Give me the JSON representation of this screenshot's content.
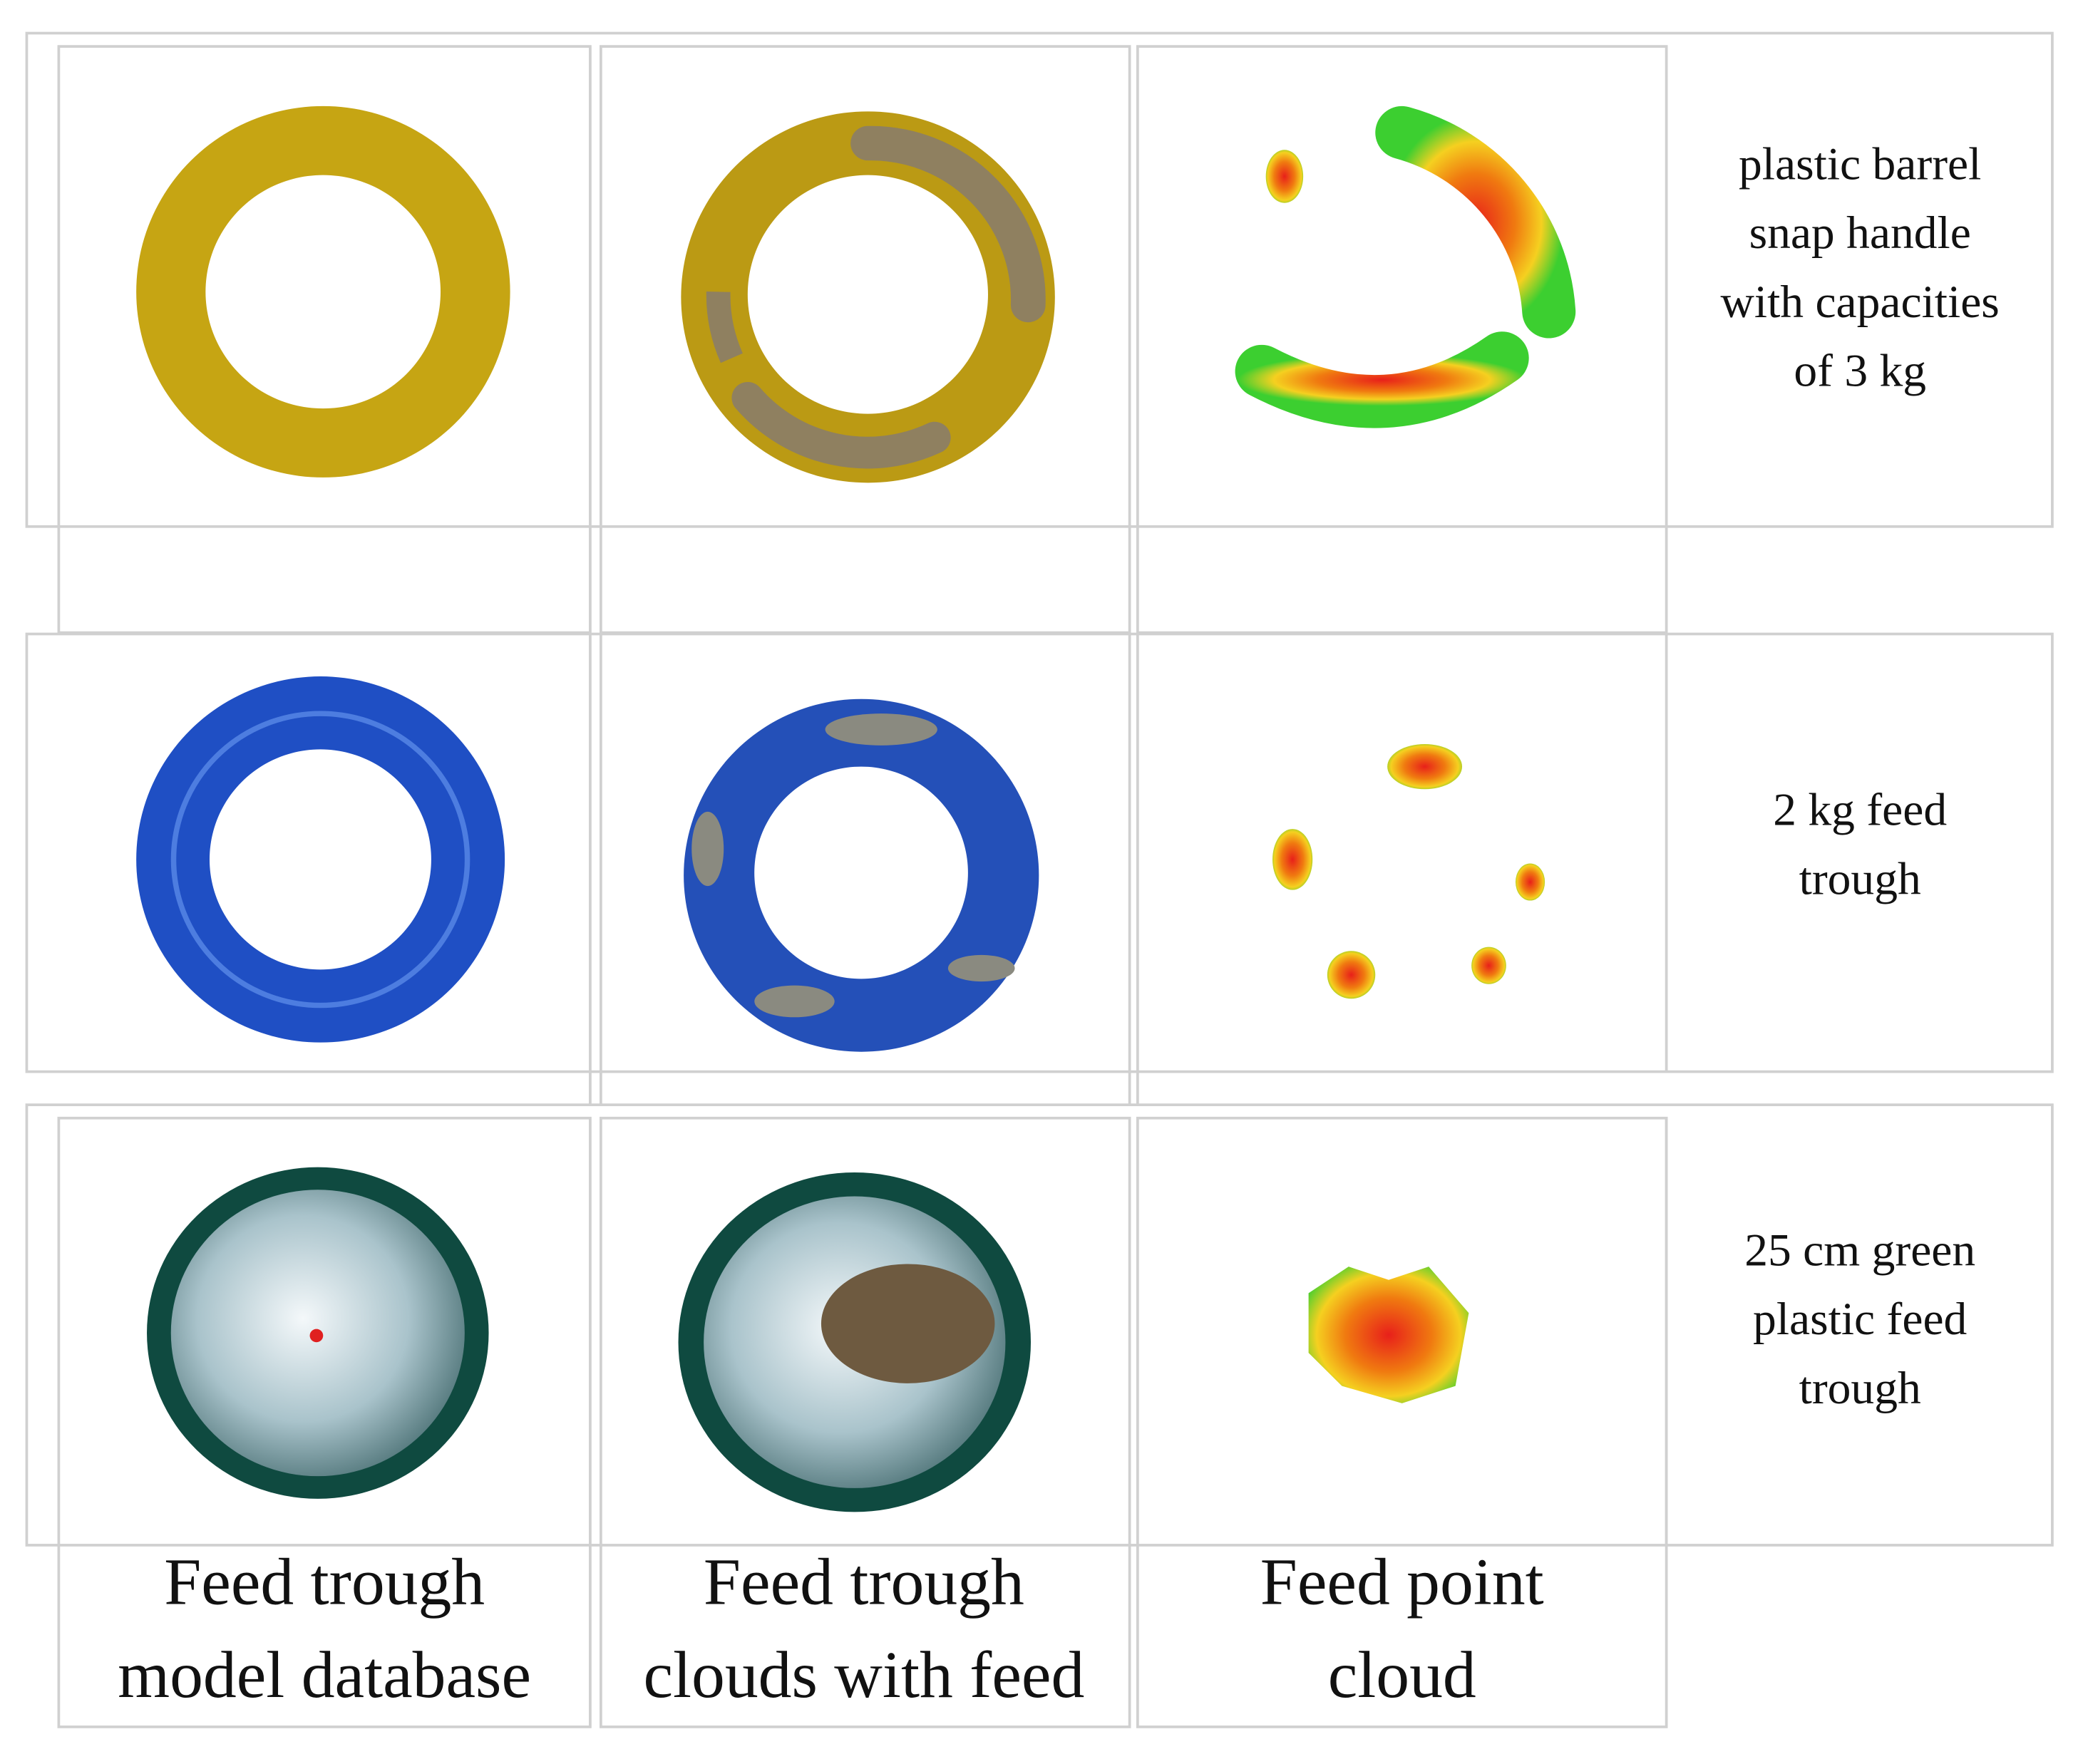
{
  "rows": [
    {
      "label": [
        "plastic barrel",
        "snap handle",
        "with capacities",
        "of 3 kg"
      ]
    },
    {
      "label": [
        "2 kg feed",
        "trough"
      ]
    },
    {
      "label": [
        "25 cm green",
        "plastic feed",
        "trough"
      ]
    }
  ],
  "columns": [
    {
      "header": [
        "Feed trough",
        "model database"
      ]
    },
    {
      "header": [
        "Feed trough",
        "clouds with feed"
      ]
    },
    {
      "header": [
        "Feed point",
        "cloud"
      ]
    }
  ]
}
